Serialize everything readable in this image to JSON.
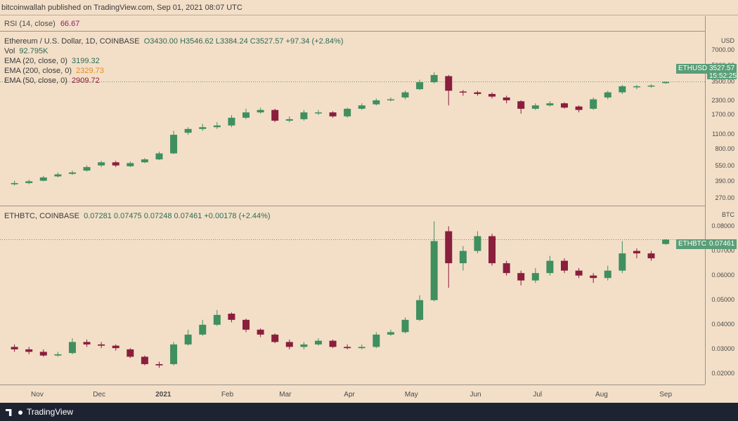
{
  "header": {
    "publisher_text": "bitcoinwallah published on TradingView.com, Sep 01, 2021 08:07 UTC"
  },
  "rsi": {
    "label": "RSI (14, close)",
    "value": "66.67"
  },
  "pane_eth": {
    "title": "Ethereum / U.S. Dollar, 1D, COINBASE",
    "ohlc": "O3430.00  H3546.62  L3384.24  C3527.57  +97.34 (+2.84%)",
    "vol_label": "Vol",
    "vol_value": "92.795K",
    "ema20_label": "EMA (20, close, 0)",
    "ema20_value": "3199.32",
    "ema200_label": "EMA (200, close, 0)",
    "ema200_value": "2329.73",
    "ema50_label": "EMA (50, close, 0)",
    "ema50_value": "2909.72",
    "unit": "USD",
    "last_tag": "ETHUSD",
    "last_price": "3527.57",
    "countdown": "15:52:25",
    "yticks": [
      "7000.00",
      "5000.00",
      "3500.00",
      "2300.00",
      "1700.00",
      "1100.00",
      "800.00",
      "550.00",
      "390.00",
      "270.00"
    ]
  },
  "pane_btc": {
    "title": "ETHBTC, COINBASE",
    "ohlc": "0.07281  0.07475  0.07248  0.07461  +0.00178 (+2.44%)",
    "unit": "BTC",
    "last_tag": "ETHBTC",
    "last_price": "0.07461",
    "yticks": [
      "0.08000",
      "0.07000",
      "0.06000",
      "0.05000",
      "0.04000",
      "0.03000",
      "0.02000"
    ]
  },
  "xaxis": {
    "ticks": [
      "Nov",
      "Dec",
      "2021",
      "Feb",
      "Mar",
      "Apr",
      "May",
      "Jun",
      "Jul",
      "Aug",
      "Sep"
    ]
  },
  "footer": {
    "brand": "TradingView"
  },
  "colors": {
    "up": "#3f8f5f",
    "down": "#8a1e3c",
    "bg": "#f3dfc8",
    "tag": "#5a9e77"
  },
  "chart_data": [
    {
      "type": "candlestick",
      "title": "Ethereum / U.S. Dollar, 1D, COINBASE",
      "scale": "log",
      "ylim": [
        250,
        9000
      ],
      "x": [
        "2020-10-21",
        "2020-10-28",
        "2020-11-04",
        "2020-11-11",
        "2020-11-18",
        "2020-11-25",
        "2020-12-02",
        "2020-12-09",
        "2020-12-16",
        "2020-12-23",
        "2020-12-30",
        "2021-01-06",
        "2021-01-13",
        "2021-01-20",
        "2021-01-27",
        "2021-02-03",
        "2021-02-10",
        "2021-02-17",
        "2021-02-24",
        "2021-03-03",
        "2021-03-10",
        "2021-03-17",
        "2021-03-24",
        "2021-03-31",
        "2021-04-07",
        "2021-04-14",
        "2021-04-21",
        "2021-04-28",
        "2021-05-05",
        "2021-05-12",
        "2021-05-19",
        "2021-05-26",
        "2021-06-02",
        "2021-06-09",
        "2021-06-16",
        "2021-06-23",
        "2021-06-30",
        "2021-07-07",
        "2021-07-14",
        "2021-07-21",
        "2021-07-28",
        "2021-08-04",
        "2021-08-11",
        "2021-08-18",
        "2021-08-25",
        "2021-09-01"
      ],
      "close": [
        380,
        395,
        430,
        460,
        480,
        540,
        600,
        560,
        590,
        640,
        730,
        1100,
        1250,
        1300,
        1350,
        1600,
        1800,
        1900,
        1500,
        1550,
        1800,
        1800,
        1650,
        1950,
        2100,
        2350,
        2400,
        2800,
        3500,
        4100,
        2900,
        2800,
        2700,
        2550,
        2350,
        1950,
        2100,
        2200,
        2000,
        1900,
        2400,
        2800,
        3200,
        3200,
        3250,
        3527.57
      ],
      "open": [
        370,
        380,
        400,
        440,
        465,
        500,
        560,
        600,
        550,
        600,
        640,
        730,
        1150,
        1250,
        1300,
        1350,
        1600,
        1800,
        1900,
        1500,
        1550,
        1800,
        1800,
        1650,
        1950,
        2150,
        2350,
        2500,
        3000,
        3500,
        4000,
        2850,
        2800,
        2700,
        2500,
        2300,
        1950,
        2100,
        2200,
        2050,
        1950,
        2500,
        2800,
        3150,
        3200,
        3430
      ],
      "high": [
        400,
        410,
        445,
        480,
        500,
        560,
        620,
        620,
        610,
        660,
        760,
        1200,
        1300,
        1400,
        1450,
        1700,
        1950,
        2000,
        1950,
        1650,
        1900,
        1900,
        1850,
        2000,
        2200,
        2450,
        2500,
        2900,
        3700,
        4350,
        4100,
        2950,
        2900,
        2800,
        2600,
        2350,
        2200,
        2300,
        2250,
        2100,
        2500,
        2900,
        3300,
        3300,
        3350,
        3546.62
      ],
      "low": [
        360,
        370,
        395,
        430,
        455,
        490,
        540,
        540,
        540,
        590,
        630,
        720,
        1100,
        1200,
        1250,
        1300,
        1550,
        1750,
        1450,
        1450,
        1500,
        1700,
        1600,
        1600,
        1900,
        2100,
        2300,
        2400,
        2950,
        3400,
        2100,
        2600,
        2600,
        2450,
        2200,
        1750,
        1900,
        2050,
        1950,
        1800,
        1900,
        2400,
        2700,
        3000,
        3100,
        3384.24
      ]
    },
    {
      "type": "candlestick",
      "title": "ETHBTC, COINBASE",
      "ylim": [
        0.018,
        0.085
      ],
      "x": [
        "2020-10-21",
        "2020-10-28",
        "2020-11-04",
        "2020-11-11",
        "2020-11-18",
        "2020-11-25",
        "2020-12-02",
        "2020-12-09",
        "2020-12-16",
        "2020-12-23",
        "2020-12-30",
        "2021-01-06",
        "2021-01-13",
        "2021-01-20",
        "2021-01-27",
        "2021-02-03",
        "2021-02-10",
        "2021-02-17",
        "2021-02-24",
        "2021-03-03",
        "2021-03-10",
        "2021-03-17",
        "2021-03-24",
        "2021-03-31",
        "2021-04-07",
        "2021-04-14",
        "2021-04-21",
        "2021-04-28",
        "2021-05-05",
        "2021-05-12",
        "2021-05-19",
        "2021-05-26",
        "2021-06-02",
        "2021-06-09",
        "2021-06-16",
        "2021-06-23",
        "2021-06-30",
        "2021-07-07",
        "2021-07-14",
        "2021-07-21",
        "2021-07-28",
        "2021-08-04",
        "2021-08-11",
        "2021-08-18",
        "2021-08-25",
        "2021-09-01"
      ],
      "close": [
        0.03,
        0.029,
        0.0275,
        0.028,
        0.033,
        0.032,
        0.0315,
        0.0305,
        0.027,
        0.024,
        0.0235,
        0.032,
        0.036,
        0.04,
        0.044,
        0.042,
        0.038,
        0.036,
        0.033,
        0.031,
        0.032,
        0.0335,
        0.031,
        0.0305,
        0.031,
        0.036,
        0.037,
        0.042,
        0.05,
        0.074,
        0.065,
        0.07,
        0.076,
        0.065,
        0.061,
        0.058,
        0.061,
        0.066,
        0.062,
        0.06,
        0.059,
        0.062,
        0.069,
        0.069,
        0.067,
        0.07461
      ],
      "open": [
        0.031,
        0.03,
        0.029,
        0.0275,
        0.0285,
        0.033,
        0.032,
        0.0315,
        0.03,
        0.027,
        0.024,
        0.024,
        0.032,
        0.036,
        0.04,
        0.0445,
        0.042,
        0.038,
        0.036,
        0.033,
        0.031,
        0.032,
        0.0335,
        0.031,
        0.0305,
        0.031,
        0.036,
        0.037,
        0.042,
        0.05,
        0.078,
        0.065,
        0.07,
        0.076,
        0.065,
        0.061,
        0.058,
        0.061,
        0.066,
        0.062,
        0.06,
        0.059,
        0.062,
        0.07,
        0.069,
        0.07281
      ],
      "high": [
        0.032,
        0.031,
        0.03,
        0.029,
        0.0345,
        0.034,
        0.033,
        0.032,
        0.0305,
        0.0275,
        0.025,
        0.033,
        0.038,
        0.042,
        0.046,
        0.045,
        0.0425,
        0.0385,
        0.0365,
        0.034,
        0.033,
        0.0345,
        0.034,
        0.032,
        0.032,
        0.037,
        0.038,
        0.043,
        0.052,
        0.082,
        0.08,
        0.072,
        0.078,
        0.077,
        0.066,
        0.062,
        0.063,
        0.068,
        0.067,
        0.063,
        0.061,
        0.064,
        0.074,
        0.071,
        0.07,
        0.07475
      ],
      "low": [
        0.029,
        0.028,
        0.027,
        0.027,
        0.028,
        0.031,
        0.0305,
        0.0295,
        0.0265,
        0.0235,
        0.0225,
        0.0235,
        0.0315,
        0.0355,
        0.0395,
        0.041,
        0.037,
        0.035,
        0.0325,
        0.03,
        0.03,
        0.0315,
        0.0305,
        0.03,
        0.03,
        0.0305,
        0.0355,
        0.0365,
        0.0415,
        0.0495,
        0.055,
        0.062,
        0.069,
        0.064,
        0.06,
        0.056,
        0.057,
        0.06,
        0.061,
        0.059,
        0.057,
        0.058,
        0.061,
        0.067,
        0.066,
        0.07248
      ]
    }
  ]
}
